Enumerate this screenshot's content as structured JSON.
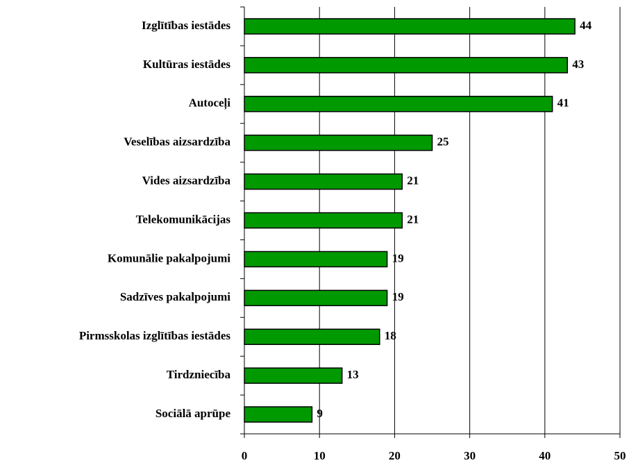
{
  "chart_data": {
    "type": "bar",
    "orientation": "horizontal",
    "categories": [
      "Izglītības iestādes",
      "Kultūras iestādes",
      "Autoceļi",
      "Veselības aizsardzība",
      "Vides aizsardzība",
      "Telekomunikācijas",
      "Komunālie pakalpojumi",
      "Sadzīves pakalpojumi",
      "Pirmsskolas izglītības iestādes",
      "Tirdzniecība",
      "Sociālā aprūpe"
    ],
    "values": [
      44,
      43,
      41,
      25,
      21,
      21,
      19,
      19,
      18,
      13,
      9
    ],
    "color": "#009900",
    "xlim": [
      0,
      50
    ],
    "xticks": [
      0,
      10,
      20,
      30,
      40,
      50
    ],
    "grid": true
  }
}
